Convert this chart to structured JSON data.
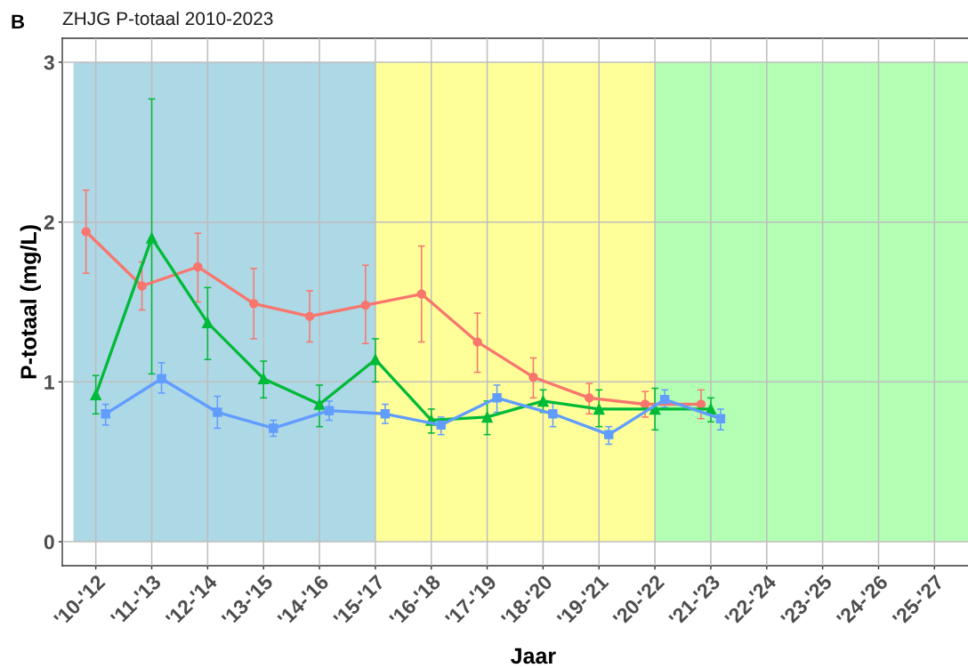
{
  "chart_data": {
    "type": "line",
    "title": "ZHJG P-totaal 2010-2023",
    "xlabel": "Jaar",
    "ylabel": "P-totaal (mg/L)",
    "annotations": [
      "B"
    ],
    "categories": [
      "'10-'12",
      "'11-'13",
      "'12-'14",
      "'13-'15",
      "'14-'16",
      "'15-'17",
      "'16-'18",
      "'17-'19",
      "'18-'20",
      "'19-'21",
      "'20-'22",
      "'21-'23",
      "'22-'24",
      "'23-'25",
      "'24-'26",
      "'25-'27"
    ],
    "ylim": [
      -0.15,
      3.15
    ],
    "yticks": [
      0,
      1,
      2,
      3
    ],
    "grid": true,
    "bands": [
      {
        "axis": "x",
        "from": "'15-'17",
        "to": "'20-'22",
        "color": "#ffff99"
      }
    ],
    "series": [
      {
        "color": "#f8766d",
        "marker": "circle",
        "values": [
          1.94,
          1.6,
          1.72,
          1.49,
          1.41,
          1.48,
          1.55,
          1.25,
          1.03,
          0.9,
          0.86,
          0.86,
          null,
          null,
          null,
          null
        ],
        "errors": [
          [
            1.68,
            2.2
          ],
          [
            1.45,
            1.75
          ],
          [
            1.5,
            1.93
          ],
          [
            1.27,
            1.71
          ],
          [
            1.25,
            1.57
          ],
          [
            1.24,
            1.73
          ],
          [
            1.25,
            1.85
          ],
          [
            1.06,
            1.43
          ],
          [
            0.9,
            1.15
          ],
          [
            0.8,
            0.99
          ],
          [
            0.78,
            0.94
          ],
          [
            0.77,
            0.95
          ],
          null,
          null,
          null,
          null
        ]
      },
      {
        "color": "#00ba38",
        "marker": "triangle",
        "values": [
          0.92,
          1.9,
          1.37,
          1.02,
          0.86,
          1.14,
          0.76,
          0.78,
          0.88,
          0.83,
          0.83,
          0.83,
          null,
          null,
          null,
          null
        ],
        "errors": [
          [
            0.8,
            1.04
          ],
          [
            1.05,
            2.77
          ],
          [
            1.14,
            1.59
          ],
          [
            0.9,
            1.13
          ],
          [
            0.72,
            0.98
          ],
          [
            1.0,
            1.27
          ],
          [
            0.68,
            0.83
          ],
          [
            0.67,
            0.88
          ],
          [
            0.81,
            0.95
          ],
          [
            0.72,
            0.95
          ],
          [
            0.7,
            0.96
          ],
          [
            0.75,
            0.9
          ],
          null,
          null,
          null,
          null
        ]
      },
      {
        "color": "#619cff",
        "marker": "square",
        "values": [
          0.8,
          1.02,
          0.81,
          0.71,
          0.82,
          0.8,
          0.73,
          0.9,
          0.8,
          0.67,
          0.89,
          0.77,
          null,
          null,
          null,
          null
        ],
        "errors": [
          [
            0.73,
            0.86
          ],
          [
            0.93,
            1.12
          ],
          [
            0.71,
            0.91
          ],
          [
            0.66,
            0.76
          ],
          [
            0.76,
            0.88
          ],
          [
            0.74,
            0.86
          ],
          [
            0.67,
            0.78
          ],
          [
            0.81,
            0.98
          ],
          [
            0.72,
            0.87
          ],
          [
            0.61,
            0.72
          ],
          [
            0.84,
            0.95
          ],
          [
            0.7,
            0.83
          ],
          null,
          null,
          null,
          null
        ]
      }
    ]
  }
}
